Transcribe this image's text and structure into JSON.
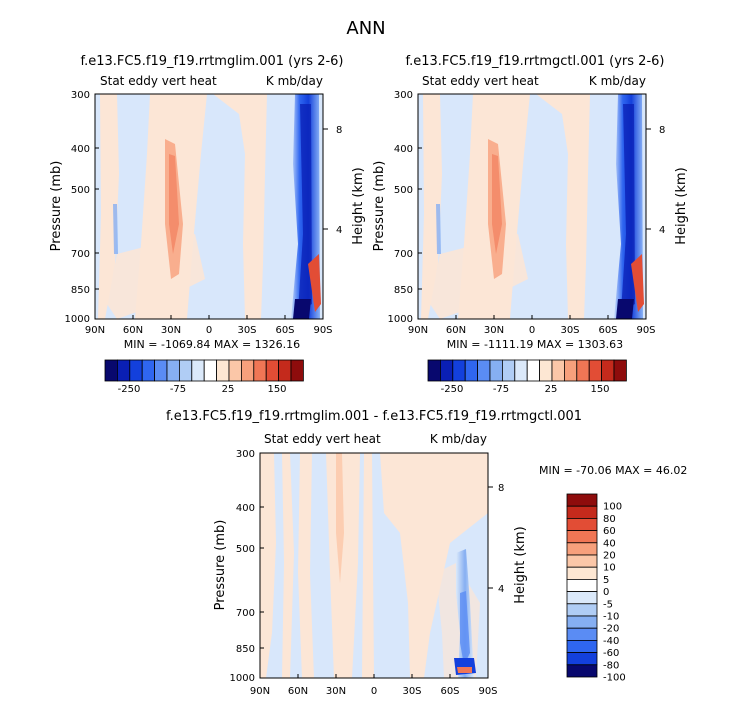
{
  "figure_title": "ANN",
  "chart_data": [
    {
      "type": "heatmap",
      "title": "f.e13.FC5.f19_f19.rrtmglim.001 (yrs 2-6)",
      "subtitle_left": "Stat eddy vert heat",
      "subtitle_right": "K mb/day",
      "ylabel": "Pressure (mb)",
      "ylabel_right": "Height (km)",
      "x_ticks": [
        "90N",
        "60N",
        "30N",
        "0",
        "30S",
        "60S",
        "90S"
      ],
      "y_ticks": [
        "300",
        "400",
        "500",
        "700",
        "850",
        "1000"
      ],
      "y_right_ticks": [
        "8",
        "4"
      ],
      "stats": "MIN = -1069.84   MAX = 1326.16",
      "colorbar_labels": [
        "-250",
        "-75",
        "25",
        "150"
      ]
    },
    {
      "type": "heatmap",
      "title": "f.e13.FC5.f19_f19.rrtmgctl.001 (yrs 2-6)",
      "subtitle_left": "Stat eddy vert heat",
      "subtitle_right": "K mb/day",
      "ylabel": "Pressure (mb)",
      "ylabel_right": "Height (km)",
      "x_ticks": [
        "90N",
        "60N",
        "30N",
        "0",
        "30S",
        "60S",
        "90S"
      ],
      "y_ticks": [
        "300",
        "400",
        "500",
        "700",
        "850",
        "1000"
      ],
      "y_right_ticks": [
        "8",
        "4"
      ],
      "stats": "MIN = -1111.19   MAX = 1303.63",
      "colorbar_labels": [
        "-250",
        "-75",
        "25",
        "150"
      ]
    },
    {
      "type": "heatmap",
      "title": "f.e13.FC5.f19_f19.rrtmglim.001 - f.e13.FC5.f19_f19.rrtmgctl.001",
      "subtitle_left": "Stat eddy vert heat",
      "subtitle_right": "K mb/day",
      "ylabel": "Pressure (mb)",
      "ylabel_right": "Height (km)",
      "x_ticks": [
        "90N",
        "60N",
        "30N",
        "0",
        "30S",
        "60S",
        "90S"
      ],
      "y_ticks": [
        "300",
        "400",
        "500",
        "700",
        "850",
        "1000"
      ],
      "y_right_ticks": [
        "8",
        "4"
      ],
      "stats": "MIN = -70.06   MAX = 46.02",
      "colorbar_labels": [
        "100",
        "80",
        "60",
        "40",
        "20",
        "10",
        "5",
        "0",
        "-5",
        "-10",
        "-20",
        "-40",
        "-60",
        "-80",
        "-100"
      ]
    }
  ],
  "colors": {
    "top_bar": [
      "#08086e",
      "#0a1fb4",
      "#1340dc",
      "#2f66f0",
      "#5a8cf4",
      "#86aff2",
      "#b0cdf5",
      "#dbe9fa",
      "#ffffff",
      "#fde7d3",
      "#fbc7a8",
      "#f7a07c",
      "#f07655",
      "#e24d35",
      "#c42a1c",
      "#8e0c0c"
    ],
    "diff_bar": [
      "#8e0c0c",
      "#c42a1c",
      "#e24d35",
      "#f07655",
      "#f7a07c",
      "#fbc7a8",
      "#fde7d3",
      "#ffffff",
      "#dbe9fa",
      "#b0cdf5",
      "#86aff2",
      "#5a8cf4",
      "#2f66f0",
      "#1340dc",
      "#08086e"
    ],
    "bg_blue": "#d8e7fb",
    "bg_peach": "#fce6d6"
  }
}
